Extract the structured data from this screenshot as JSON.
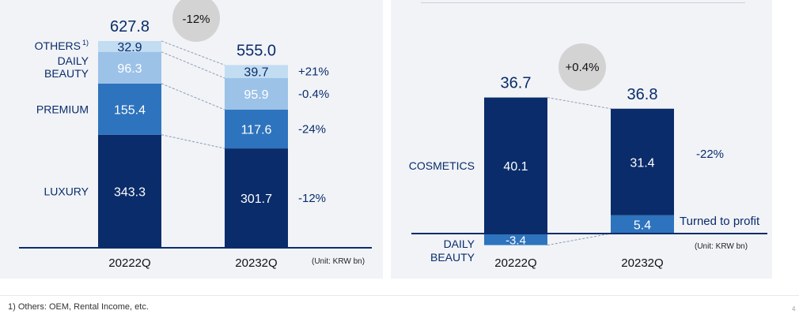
{
  "colors": {
    "luxury": "#0a2c6a",
    "premium": "#2e73bd",
    "daily_beauty": "#9cc2e8",
    "others": "#c2dcf2",
    "cosmetics": "#0a2c6a",
    "daily_beauty_right": "#2e73bd",
    "text_dark": "#0a2c6a",
    "badge_bg": "#d3d3d3",
    "baseline": "#0a2c6a"
  },
  "chart_data": [
    {
      "type": "bar",
      "stacked": true,
      "categories": [
        "2022 2Q",
        "2023 2Q"
      ],
      "series": [
        {
          "name": "LUXURY",
          "values": [
            343.3,
            301.7
          ],
          "change": "-12%"
        },
        {
          "name": "PREMIUM",
          "values": [
            155.4,
            117.6
          ],
          "change": "-24%"
        },
        {
          "name": "DAILY BEAUTY",
          "values": [
            96.3,
            95.9
          ],
          "change": "-0.4%"
        },
        {
          "name": "OTHERS",
          "values": [
            32.9,
            39.7
          ],
          "change": "+21%"
        }
      ],
      "others_footnote_mark": "1)",
      "totals": [
        627.8,
        555.0
      ],
      "total_labels": [
        "627.8",
        "555.0"
      ],
      "total_change": "-12%",
      "unit": "(Unit: KRW bn)"
    },
    {
      "type": "bar",
      "stacked": true,
      "categories": [
        "2022 2Q",
        "2023 2Q"
      ],
      "series": [
        {
          "name": "COSMETICS",
          "values": [
            40.1,
            31.4
          ],
          "change": "-22%"
        },
        {
          "name": "DAILY BEAUTY",
          "values": [
            -3.4,
            5.4
          ],
          "change": "Turned to profit"
        }
      ],
      "totals": [
        36.7,
        36.8
      ],
      "total_labels": [
        "36.7",
        "36.8"
      ],
      "total_change": "+0.4%",
      "unit": "(Unit: KRW bn)"
    }
  ],
  "footnote": "1) Others: OEM, Rental Income, etc.",
  "page_number": "4"
}
